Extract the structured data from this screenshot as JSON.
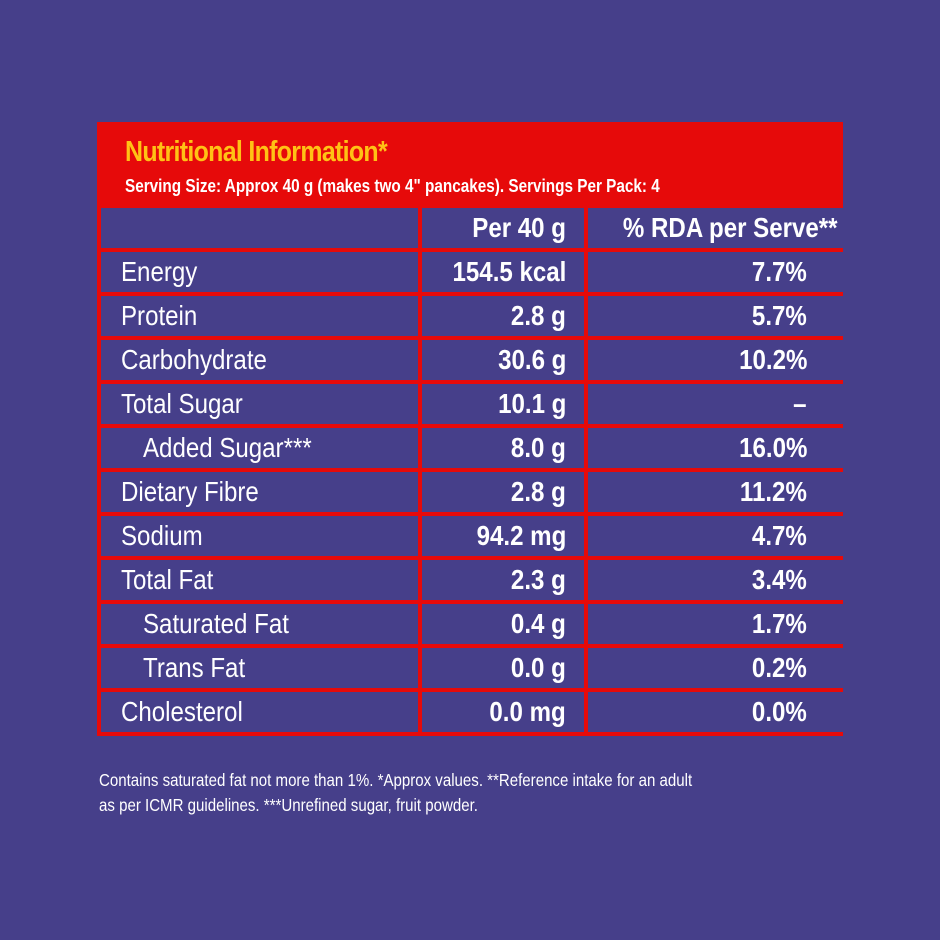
{
  "panel": {
    "title": "Nutritional Information*",
    "subtitle": "Serving Size: Approx 40 g (makes two 4\" pancakes). Servings Per Pack: 4",
    "colors": {
      "background": "#463f8a",
      "panel_red": "#e60a0a",
      "title_yellow": "#ffc215",
      "text": "#ffffff"
    }
  },
  "table": {
    "headers": [
      "",
      "Per 40 g",
      "% RDA per Serve**"
    ],
    "rows": [
      {
        "name": "Energy",
        "per40g": "154.5 kcal",
        "rda": "7.7%",
        "indent": false
      },
      {
        "name": "Protein",
        "per40g": "2.8 g",
        "rda": "5.7%",
        "indent": false
      },
      {
        "name": "Carbohydrate",
        "per40g": "30.6 g",
        "rda": "10.2%",
        "indent": false
      },
      {
        "name": "Total Sugar",
        "per40g": "10.1 g",
        "rda": "–",
        "indent": false
      },
      {
        "name": "Added Sugar***",
        "per40g": "8.0 g",
        "rda": "16.0%",
        "indent": true
      },
      {
        "name": "Dietary Fibre",
        "per40g": "2.8 g",
        "rda": "11.2%",
        "indent": false
      },
      {
        "name": "Sodium",
        "per40g": "94.2 mg",
        "rda": "4.7%",
        "indent": false
      },
      {
        "name": "Total Fat",
        "per40g": "2.3 g",
        "rda": "3.4%",
        "indent": false
      },
      {
        "name": "Saturated Fat",
        "per40g": "0.4 g",
        "rda": "1.7%",
        "indent": true
      },
      {
        "name": "Trans Fat",
        "per40g": "0.0 g",
        "rda": "0.2%",
        "indent": true
      },
      {
        "name": "Cholesterol",
        "per40g": "0.0 mg",
        "rda": "0.0%",
        "indent": false
      }
    ]
  },
  "footnote": {
    "line1": "Contains saturated fat not more than 1%. *Approx values. **Reference intake for an adult",
    "line2": "as per ICMR guidelines. ***Unrefined sugar, fruit powder."
  }
}
